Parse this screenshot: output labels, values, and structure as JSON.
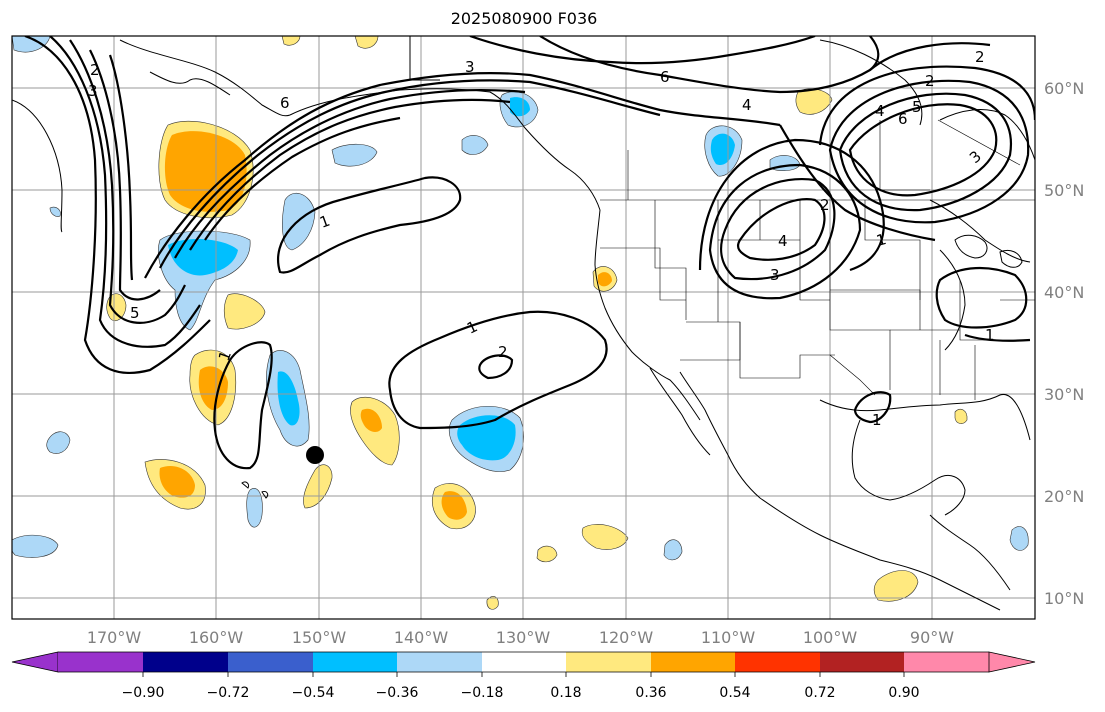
{
  "title": "2025080900 F036",
  "map": {
    "lon_labels": [
      "170°W",
      "160°W",
      "150°W",
      "140°W",
      "130°W",
      "120°W",
      "110°W",
      "100°W",
      "90°W"
    ],
    "lat_labels": [
      "60°N",
      "50°N",
      "40°N",
      "30°N",
      "20°N",
      "10°N"
    ],
    "station_marker": {
      "lon": -150.5,
      "lat": 24,
      "color": "#000000"
    },
    "contour_labels": [
      "1",
      "2",
      "3",
      "4",
      "5",
      "6"
    ]
  },
  "colorbar": {
    "ticks": [
      "−0.90",
      "−0.72",
      "−0.54",
      "−0.36",
      "−0.18",
      "0.18",
      "0.36",
      "0.54",
      "0.72",
      "0.90"
    ],
    "colors": [
      "#9932cc",
      "#00008b",
      "#3a5fcd",
      "#00bfff",
      "#add8f7",
      "#ffffff",
      "#ffe97f",
      "#ffa500",
      "#ff3300",
      "#b22222",
      "#ff88aa"
    ]
  }
}
